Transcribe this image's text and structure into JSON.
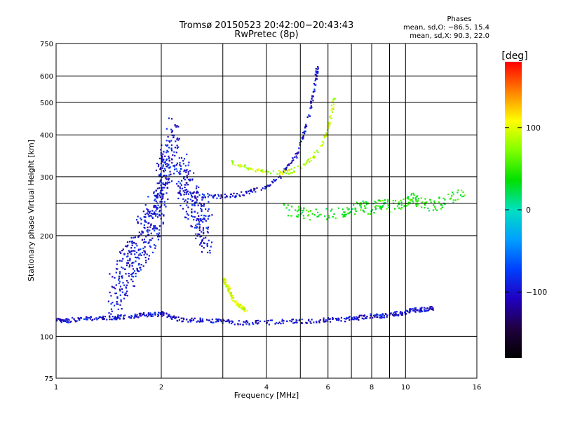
{
  "chart_data": {
    "type": "scatter",
    "title": "Tromsø 20150523 20:42:00−20:43:43",
    "subtitle": "RwPretec (8p)",
    "xlabel": "Frequency [MHz]",
    "ylabel": "Stationary phase Virtual Height [km]",
    "xscale": "log",
    "yscale": "log",
    "xlim": [
      1,
      16
    ],
    "ylim": [
      75,
      750
    ],
    "xticks": [
      1,
      2,
      4,
      6,
      8,
      10,
      16
    ],
    "xtick_labels": [
      "1",
      "2",
      "4",
      "6",
      "8",
      "10",
      "16"
    ],
    "xgrid_minor": [
      3,
      5,
      7,
      9
    ],
    "yticks": [
      75,
      100,
      200,
      300,
      400,
      500,
      600,
      750
    ],
    "ytick_labels": [
      "75",
      "100",
      "200",
      "300",
      "400",
      "500",
      "600",
      "750"
    ],
    "ygrid_minor": [
      250
    ],
    "grid": true,
    "phase_info": {
      "title": "Phases",
      "line1": "mean, sd,O: −86.5, 15.4",
      "line2": "mean, sd,X:  90.3, 22.0"
    },
    "colorbar": {
      "label": "[deg]",
      "ticks": [
        100,
        0,
        -100
      ],
      "tick_labels": [
        "100",
        "0",
        "−100"
      ],
      "range": [
        -180,
        180
      ],
      "colors": [
        "#ff0000",
        "#ff8000",
        "#ffff00",
        "#80ff00",
        "#00e000",
        "#00e0c0",
        "#00a0ff",
        "#0040ff",
        "#2000c0",
        "#200040",
        "#000000"
      ]
    },
    "series": [
      {
        "trace": "low_band",
        "color_phase": -100,
        "x": [
          1.0,
          1.05,
          1.1,
          1.2,
          1.3,
          1.4,
          1.5,
          1.6,
          1.7,
          1.8,
          1.9,
          2.0,
          2.1,
          2.2,
          2.4,
          2.6,
          2.8,
          3.0,
          3.3,
          3.6,
          4.0,
          4.5,
          5.0,
          5.5,
          6.0,
          6.5,
          7.0,
          7.5,
          8.0,
          8.5,
          9.0,
          9.5,
          10.0,
          10.5,
          11.0,
          11.5,
          12.0
        ],
        "y": [
          112,
          111,
          112,
          113,
          113,
          114,
          114,
          115,
          115,
          116,
          116,
          117,
          115,
          113,
          112,
          112,
          111,
          111,
          110,
          110,
          110,
          111,
          111,
          111,
          112,
          112,
          113,
          114,
          115,
          115,
          116,
          117,
          118,
          120,
          120,
          121,
          122
        ]
      },
      {
        "trace": "F_layer_O",
        "color_phase": -100,
        "x": [
          2.2,
          2.5,
          2.8,
          3.0,
          3.3,
          3.6,
          4.0,
          4.3,
          4.6,
          4.9,
          5.1,
          5.3,
          5.45,
          5.55,
          5.6
        ],
        "y": [
          270,
          265,
          262,
          262,
          265,
          270,
          280,
          295,
          320,
          350,
          400,
          460,
          530,
          600,
          640
        ]
      },
      {
        "trace": "F_layer_X",
        "color_phase": 90,
        "x": [
          3.2,
          3.5,
          3.8,
          4.2,
          4.6,
          5.0,
          5.4,
          5.8,
          6.0,
          6.15,
          6.25
        ],
        "y": [
          330,
          320,
          312,
          308,
          310,
          320,
          340,
          380,
          420,
          470,
          520
        ]
      },
      {
        "trace": "E_layer_X",
        "color_phase": 95,
        "x": [
          3.0,
          3.05,
          3.1,
          3.15,
          3.2,
          3.3,
          3.4,
          3.5
        ],
        "y": [
          150,
          145,
          140,
          135,
          130,
          125,
          122,
          120
        ]
      },
      {
        "trace": "spread_cloud",
        "color_phase": -95,
        "x": [
          1.45,
          1.55,
          1.65,
          1.75,
          1.85,
          1.95,
          2.0,
          2.05,
          2.15,
          2.3,
          2.45,
          2.6,
          2.75
        ],
        "y": [
          130,
          150,
          170,
          190,
          210,
          240,
          280,
          320,
          380,
          300,
          250,
          220,
          200
        ]
      },
      {
        "trace": "patchy_250",
        "color_phase": 40,
        "x": [
          4.5,
          5.0,
          5.5,
          6.5,
          7.0,
          7.5,
          8.0,
          8.5,
          9.0,
          10.0,
          10.5,
          11.0,
          12.0,
          13.0,
          15.0
        ],
        "y": [
          240,
          235,
          230,
          235,
          238,
          245,
          240,
          250,
          245,
          250,
          260,
          250,
          245,
          255,
          270
        ]
      }
    ]
  }
}
